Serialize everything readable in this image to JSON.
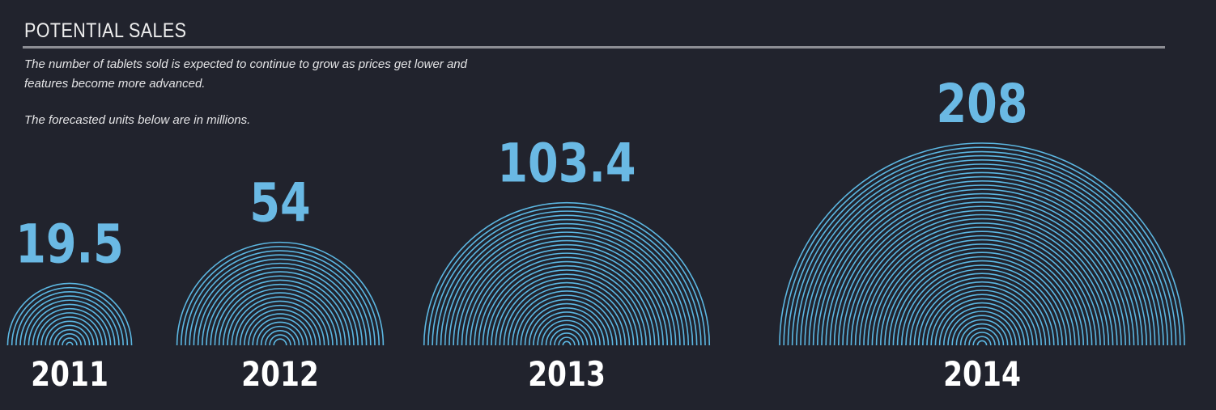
{
  "header": {
    "title": "POTENTIAL SALES",
    "description": "The number of tablets sold is expected to continue to grow as prices get lower and features become more advanced.",
    "note": "The forecasted units below are in millions."
  },
  "colors": {
    "background": "#21232d",
    "arc": "#5cb7e2",
    "value_text": "#6ab9e4",
    "year_text": "#ffffff"
  },
  "chart_data": {
    "type": "bar",
    "title": "POTENTIAL SALES",
    "unit": "millions",
    "categories": [
      "2011",
      "2012",
      "2013",
      "2014"
    ],
    "values": [
      19.5,
      54,
      103.4,
      208
    ],
    "value_labels": [
      "19.5",
      "54",
      "103.4",
      "208"
    ]
  }
}
